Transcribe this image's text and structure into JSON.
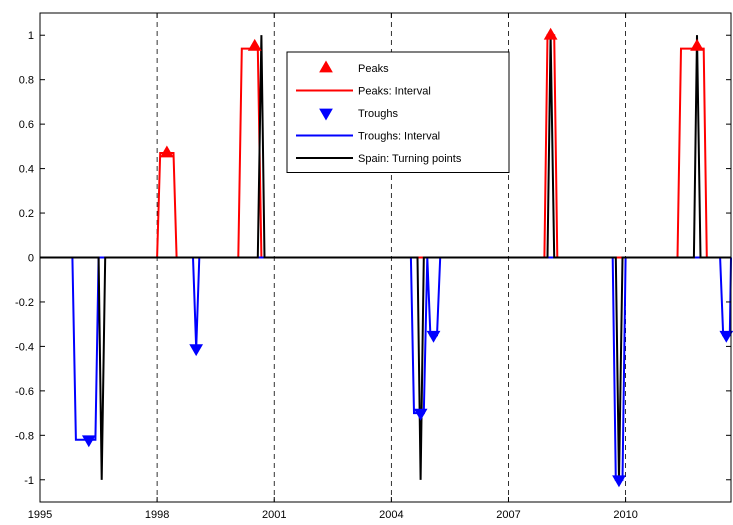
{
  "chart_data": {
    "type": "line",
    "title": "",
    "xlabel": "",
    "ylabel": "",
    "xlim": [
      1995,
      2012.7
    ],
    "ylim": [
      -1.1,
      1.1
    ],
    "grid": "vertical dashed lines at x-ticks",
    "xticks": [
      1995,
      1998,
      2001,
      2004,
      2007,
      2010
    ],
    "xtick_labels": [
      "1995",
      "1998",
      "2001",
      "2004",
      "2007",
      "2010"
    ],
    "yticks": [
      -1,
      -0.8,
      -0.6,
      -0.4,
      -0.2,
      0,
      0.2,
      0.4,
      0.6,
      0.8,
      1
    ],
    "ytick_labels": [
      "-1",
      "-0.8",
      "-0.6",
      "-0.4",
      "-0.2",
      "0",
      "0.2",
      "0.4",
      "0.6",
      "0.8",
      "1"
    ],
    "legend_position": "top-center",
    "series": [
      {
        "name": "Peaks",
        "kind": "marker",
        "marker": "triangle-up",
        "color": "#ff0000",
        "points": [
          [
            1998.25,
            0.47
          ],
          [
            2000.5,
            0.95
          ],
          [
            2008.08,
            1.0
          ],
          [
            2011.83,
            0.95
          ]
        ]
      },
      {
        "name": "Peaks: Interval",
        "kind": "line",
        "color": "#ff0000",
        "points": [
          [
            1995,
            0
          ],
          [
            1998.0,
            0
          ],
          [
            1998.08,
            0.47
          ],
          [
            1998.42,
            0.47
          ],
          [
            1998.5,
            0
          ],
          [
            2000.08,
            0
          ],
          [
            2000.17,
            0.94
          ],
          [
            2000.58,
            0.94
          ],
          [
            2000.67,
            0
          ],
          [
            2007.92,
            0
          ],
          [
            2008.0,
            1.0
          ],
          [
            2008.17,
            1.0
          ],
          [
            2008.25,
            0
          ],
          [
            2011.33,
            0
          ],
          [
            2011.42,
            0.94
          ],
          [
            2012.0,
            0.94
          ],
          [
            2012.08,
            0
          ],
          [
            2012.7,
            0
          ]
        ]
      },
      {
        "name": "Troughs",
        "kind": "marker",
        "marker": "triangle-down",
        "color": "#0000ff",
        "points": [
          [
            1996.25,
            -0.82
          ],
          [
            1999.0,
            -0.41
          ],
          [
            2004.75,
            -0.7
          ],
          [
            2005.08,
            -0.35
          ],
          [
            2009.83,
            -1.0
          ],
          [
            2012.58,
            -0.35
          ]
        ]
      },
      {
        "name": "Troughs: Interval",
        "kind": "line",
        "color": "#0000ff",
        "points": [
          [
            1995,
            0
          ],
          [
            1995.83,
            0
          ],
          [
            1995.92,
            -0.82
          ],
          [
            1996.42,
            -0.82
          ],
          [
            1996.5,
            0
          ],
          [
            1998.92,
            0
          ],
          [
            1999.0,
            -0.41
          ],
          [
            1999.08,
            0
          ],
          [
            2004.5,
            0
          ],
          [
            2004.58,
            -0.7
          ],
          [
            2004.83,
            -0.7
          ],
          [
            2004.92,
            0
          ],
          [
            2005.0,
            -0.35
          ],
          [
            2005.17,
            -0.35
          ],
          [
            2005.25,
            0
          ],
          [
            2009.67,
            0
          ],
          [
            2009.75,
            -1.0
          ],
          [
            2009.92,
            -1.0
          ],
          [
            2010.0,
            0
          ],
          [
            2012.42,
            0
          ],
          [
            2012.5,
            -0.35
          ],
          [
            2012.67,
            -0.35
          ],
          [
            2012.7,
            0
          ]
        ]
      },
      {
        "name": "Spain: Turning points",
        "kind": "line",
        "color": "#000000",
        "points": [
          [
            1995,
            0
          ],
          [
            1996.5,
            0
          ],
          [
            1996.58,
            -1.0
          ],
          [
            1996.67,
            0
          ],
          [
            2000.58,
            0
          ],
          [
            2000.67,
            1.0
          ],
          [
            2000.75,
            0
          ],
          [
            2004.67,
            0
          ],
          [
            2004.75,
            -1.0
          ],
          [
            2004.83,
            0
          ],
          [
            2008.0,
            0
          ],
          [
            2008.08,
            1.0
          ],
          [
            2008.17,
            0
          ],
          [
            2009.75,
            0
          ],
          [
            2009.83,
            -1.0
          ],
          [
            2009.92,
            0
          ],
          [
            2011.75,
            0
          ],
          [
            2011.83,
            1.0
          ],
          [
            2011.92,
            0
          ],
          [
            2012.7,
            0
          ]
        ]
      }
    ]
  }
}
